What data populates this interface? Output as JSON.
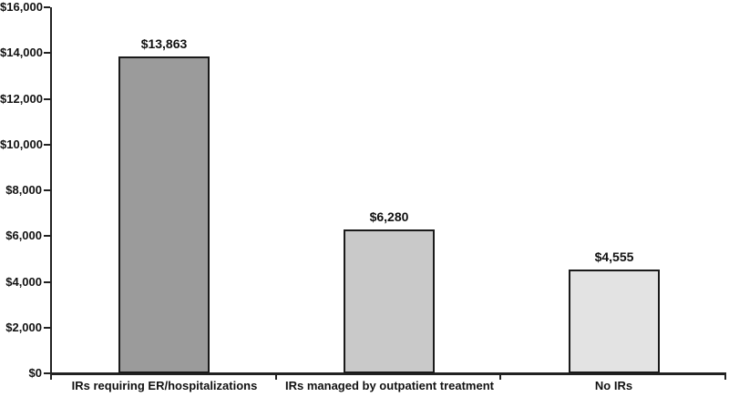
{
  "chart_data": {
    "type": "bar",
    "title": "",
    "xlabel": "",
    "ylabel": "",
    "categories": [
      "IRs requiring ER/hospitalizations",
      "IRs managed by outpatient treatment",
      "No IRs"
    ],
    "values": [
      13863,
      6280,
      4555
    ],
    "value_labels": [
      "$13,863",
      "$6,280",
      "$4,555"
    ],
    "ylim": [
      0,
      16000
    ],
    "y_tick_step": 2000,
    "y_ticks": [
      {
        "value": 0,
        "label": "$0"
      },
      {
        "value": 2000,
        "label": "$2,000"
      },
      {
        "value": 4000,
        "label": "$4,000"
      },
      {
        "value": 6000,
        "label": "$6,000"
      },
      {
        "value": 8000,
        "label": "$8,000"
      },
      {
        "value": 10000,
        "label": "$10,000"
      },
      {
        "value": 12000,
        "label": "$12,000"
      },
      {
        "value": 14000,
        "label": "$14,000"
      },
      {
        "value": 16000,
        "label": "$16,000"
      }
    ],
    "bar_colors": [
      "#9b9b9b",
      "#c9c9c9",
      "#e3e3e3"
    ],
    "bar_border_color": "#1a1a1a",
    "axis_color": "#222222",
    "text_color": "#111111",
    "background_color": "#ffffff",
    "grid": false,
    "legend": false
  }
}
